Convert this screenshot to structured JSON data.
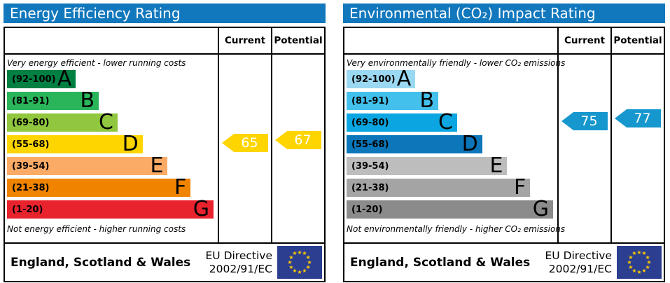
{
  "colors": {
    "header_bg": "#1278bd",
    "border": "#000000",
    "eu_flag_bg": "#2c3e8f",
    "eu_flag_star": "#ffcc00",
    "epc_arrow_yellow": "#ffd500",
    "co2_arrow_blue": "#1697ce"
  },
  "panels": [
    {
      "title": "Energy Efficiency Rating",
      "columns": {
        "current": "Current",
        "potential": "Potential"
      },
      "top_caption": "Very energy efficient - lower running costs",
      "bottom_caption": "Not energy efficient - higher running costs",
      "bands": [
        {
          "letter": "A",
          "range": "(92-100)",
          "color": "#008042",
          "width": "33%"
        },
        {
          "letter": "B",
          "range": "(81-91)",
          "color": "#2ab55a",
          "width": "44%"
        },
        {
          "letter": "C",
          "range": "(69-80)",
          "color": "#90c73e",
          "width": "53%"
        },
        {
          "letter": "D",
          "range": "(55-68)",
          "color": "#ffd500",
          "width": "65%"
        },
        {
          "letter": "E",
          "range": "(39-54)",
          "color": "#fbab66",
          "width": "77%"
        },
        {
          "letter": "F",
          "range": "(21-38)",
          "color": "#f08300",
          "width": "88%"
        },
        {
          "letter": "G",
          "range": "(1-20)",
          "color": "#e9232d",
          "width": "99%"
        }
      ],
      "current": {
        "value": "65",
        "band_index": 3,
        "color": "#ffd500"
      },
      "potential": {
        "value": "67",
        "band_index": 3,
        "color": "#ffd500"
      },
      "footer": {
        "region": "England, Scotland & Wales",
        "directive_line1": "EU Directive",
        "directive_line2": "2002/91/EC"
      }
    },
    {
      "title": "Environmental (CO₂) Impact Rating",
      "columns": {
        "current": "Current",
        "potential": "Potential"
      },
      "top_caption": "Very environmentally friendly - lower CO₂ emissions",
      "bottom_caption": "Not environmentally friendly - higher CO₂ emissions",
      "bands": [
        {
          "letter": "A",
          "range": "(92-100)",
          "color": "#9bd8f1",
          "width": "33%"
        },
        {
          "letter": "B",
          "range": "(81-91)",
          "color": "#43c0ec",
          "width": "44%"
        },
        {
          "letter": "C",
          "range": "(69-80)",
          "color": "#0ba6e1",
          "width": "53%"
        },
        {
          "letter": "D",
          "range": "(55-68)",
          "color": "#0c76ba",
          "width": "65%"
        },
        {
          "letter": "E",
          "range": "(39-54)",
          "color": "#bdbdbd",
          "width": "77%"
        },
        {
          "letter": "F",
          "range": "(21-38)",
          "color": "#a4a4a4",
          "width": "88%"
        },
        {
          "letter": "G",
          "range": "(1-20)",
          "color": "#8b8b8b",
          "width": "99%"
        }
      ],
      "current": {
        "value": "75",
        "band_index": 2,
        "color": "#1697ce"
      },
      "potential": {
        "value": "77",
        "band_index": 2,
        "color": "#1697ce"
      },
      "footer": {
        "region": "England, Scotland & Wales",
        "directive_line1": "EU Directive",
        "directive_line2": "2002/91/EC"
      }
    }
  ],
  "chart_data": [
    {
      "type": "bar",
      "title": "Energy Efficiency Rating",
      "categories": [
        "A (92-100)",
        "B (81-91)",
        "C (69-80)",
        "D (55-68)",
        "E (39-54)",
        "F (21-38)",
        "G (1-20)"
      ],
      "bar_lengths_pct": [
        33,
        44,
        53,
        65,
        77,
        88,
        99
      ],
      "current": 65,
      "potential": 67,
      "current_band": "D",
      "potential_band": "D",
      "top_caption": "Very energy efficient - lower running costs",
      "bottom_caption": "Not energy efficient - higher running costs",
      "value_range": [
        1,
        100
      ]
    },
    {
      "type": "bar",
      "title": "Environmental (CO₂) Impact Rating",
      "categories": [
        "A (92-100)",
        "B (81-91)",
        "C (69-80)",
        "D (55-68)",
        "E (39-54)",
        "F (21-38)",
        "G (1-20)"
      ],
      "bar_lengths_pct": [
        33,
        44,
        53,
        65,
        77,
        88,
        99
      ],
      "current": 75,
      "potential": 77,
      "current_band": "C",
      "potential_band": "C",
      "top_caption": "Very environmentally friendly - lower CO₂ emissions",
      "bottom_caption": "Not environmentally friendly - higher CO₂ emissions",
      "value_range": [
        1,
        100
      ]
    }
  ]
}
